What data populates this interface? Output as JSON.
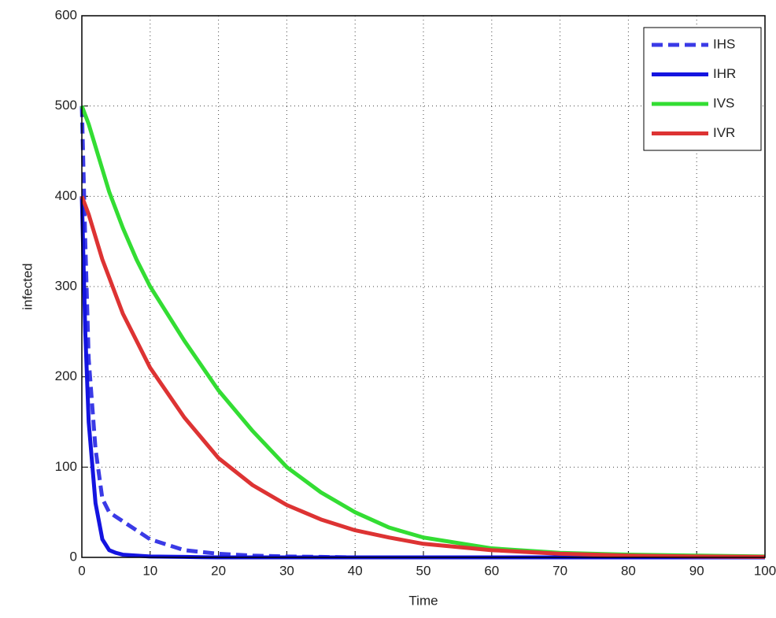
{
  "chart_data": {
    "type": "line",
    "x_label": "Time",
    "y_label": "infected",
    "x": [
      0,
      0.5,
      1,
      2,
      3,
      4,
      5,
      6,
      8,
      10,
      15,
      20,
      25,
      30,
      35,
      40,
      45,
      50,
      60,
      70,
      80,
      90,
      100
    ],
    "series": [
      {
        "name": "IHS",
        "color": "#3a3ae6",
        "dashed": true,
        "values": [
          500,
          350,
          220,
          120,
          65,
          50,
          45,
          40,
          30,
          20,
          8,
          4,
          2,
          1,
          0.5,
          0,
          0,
          0,
          0,
          0,
          0,
          0,
          0
        ]
      },
      {
        "name": "IHR",
        "color": "#1414e0",
        "dashed": false,
        "values": [
          400,
          250,
          150,
          60,
          20,
          8,
          5,
          3,
          2,
          1,
          0.5,
          0,
          0,
          0,
          0,
          0,
          0,
          0,
          0,
          0,
          0,
          0,
          0
        ]
      },
      {
        "name": "IVS",
        "color": "#33dd33",
        "dashed": false,
        "values": [
          500,
          490,
          480,
          455,
          430,
          405,
          385,
          365,
          330,
          300,
          240,
          185,
          140,
          100,
          72,
          50,
          33,
          22,
          10,
          5,
          3,
          2,
          1
        ]
      },
      {
        "name": "IVR",
        "color": "#dd3333",
        "dashed": false,
        "values": [
          400,
          390,
          380,
          355,
          330,
          310,
          290,
          270,
          240,
          210,
          155,
          110,
          80,
          58,
          42,
          30,
          22,
          15,
          8,
          4,
          2,
          1,
          0.5
        ]
      }
    ],
    "xlim": [
      0,
      100
    ],
    "xticks": [
      0,
      10,
      20,
      30,
      40,
      50,
      60,
      70,
      80,
      90,
      100
    ],
    "ylim": [
      0,
      600
    ],
    "yticks": [
      0,
      100,
      200,
      300,
      400,
      500,
      600
    ],
    "grid": true,
    "legend": "upper right"
  }
}
